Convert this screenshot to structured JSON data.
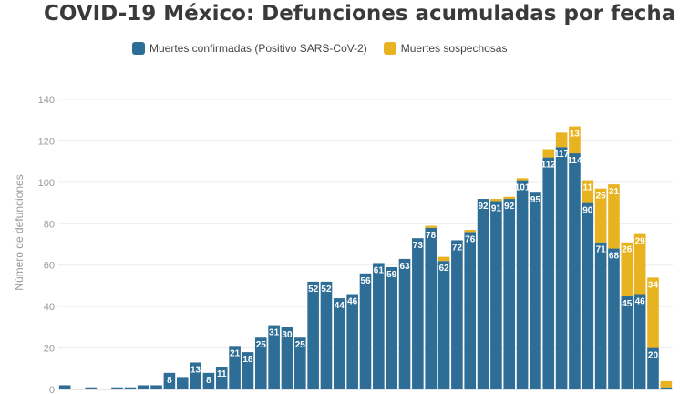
{
  "chart_data": {
    "type": "bar",
    "stacked": true,
    "title": "COVID-19 México: Defunciones acumuladas por fecha",
    "ylabel": "Número de defunciones",
    "xlabel": "",
    "ylim": [
      0,
      140
    ],
    "yticks": [
      "0",
      "20",
      "40",
      "60",
      "80",
      "100",
      "120",
      "140"
    ],
    "grid": true,
    "legend_position": "top",
    "series": [
      {
        "name": "Muertes confirmadas (Positivo SARS-CoV-2)",
        "color": "#2e6e96",
        "values": [
          2,
          0,
          1,
          0,
          1,
          1,
          2,
          2,
          8,
          6,
          13,
          8,
          11,
          21,
          18,
          25,
          31,
          30,
          25,
          52,
          52,
          44,
          46,
          56,
          61,
          59,
          63,
          73,
          78,
          62,
          72,
          76,
          92,
          91,
          92,
          101,
          95,
          112,
          117,
          114,
          90,
          71,
          68,
          45,
          46,
          20,
          1
        ],
        "labels": [
          "",
          "",
          "",
          "",
          "",
          "",
          "",
          "",
          "8",
          "",
          "13",
          "8",
          "11",
          "21",
          "18",
          "25",
          "31",
          "30",
          "25",
          "52",
          "52",
          "44",
          "46",
          "56",
          "61",
          "59",
          "63",
          "73",
          "78",
          "62",
          "72",
          "76",
          "92",
          "91",
          "92",
          "101",
          "95",
          "112",
          "117",
          "114",
          "90",
          "71",
          "68",
          "45",
          "46",
          "20",
          ""
        ]
      },
      {
        "name": "Muertes sospechosas",
        "color": "#e8b320",
        "values": [
          0,
          0,
          0,
          0,
          0,
          0,
          0,
          0,
          0,
          0,
          0,
          0,
          0,
          0,
          0,
          0,
          0,
          0,
          0,
          0,
          0,
          0,
          0,
          0,
          0,
          0,
          0,
          0,
          1,
          2,
          0,
          1,
          0,
          1,
          1,
          1,
          0,
          4,
          7,
          13,
          11,
          26,
          31,
          26,
          29,
          34,
          3
        ],
        "labels": [
          "",
          "",
          "",
          "",
          "",
          "",
          "",
          "",
          "",
          "",
          "",
          "",
          "",
          "",
          "",
          "",
          "",
          "",
          "",
          "",
          "",
          "",
          "",
          "",
          "",
          "",
          "",
          "",
          "",
          "",
          "",
          "",
          "",
          "",
          "",
          "",
          "",
          "",
          "",
          "13",
          "11",
          "26",
          "31",
          "26",
          "29",
          "34",
          ""
        ]
      }
    ]
  }
}
